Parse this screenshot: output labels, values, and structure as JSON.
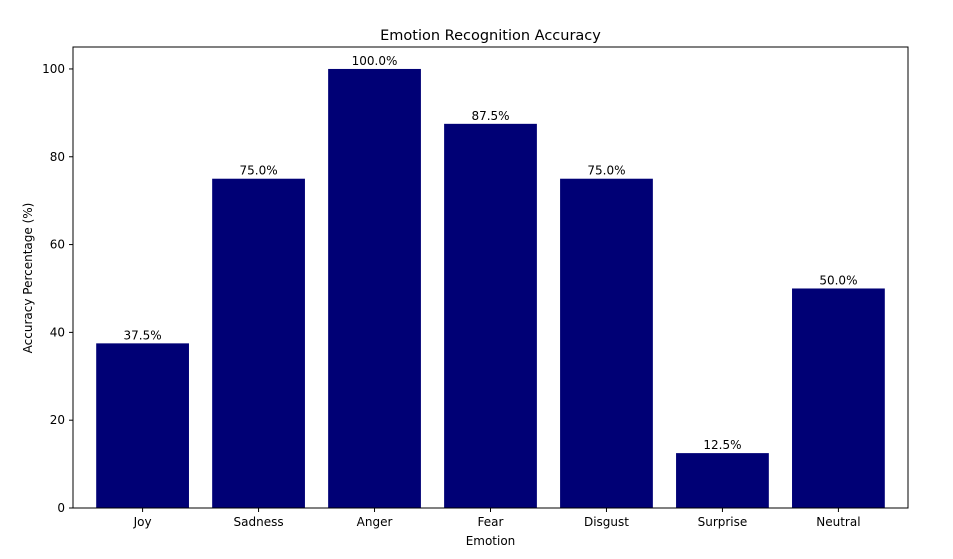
{
  "chart_data": {
    "type": "bar",
    "title": "Emotion Recognition Accuracy",
    "xlabel": "Emotion",
    "ylabel": "Accuracy Percentage (%)",
    "categories": [
      "Joy",
      "Sadness",
      "Anger",
      "Fear",
      "Disgust",
      "Surprise",
      "Neutral"
    ],
    "values": [
      37.5,
      75.0,
      100.0,
      87.5,
      75.0,
      12.5,
      50.0
    ],
    "data_labels": [
      "37.5%",
      "75.0%",
      "100.0%",
      "87.5%",
      "75.0%",
      "12.5%",
      "50.0%"
    ],
    "ylim": [
      0,
      105
    ],
    "yticks": [
      0,
      20,
      40,
      60,
      80,
      100
    ],
    "grid": false,
    "bar_color": "#000075"
  }
}
